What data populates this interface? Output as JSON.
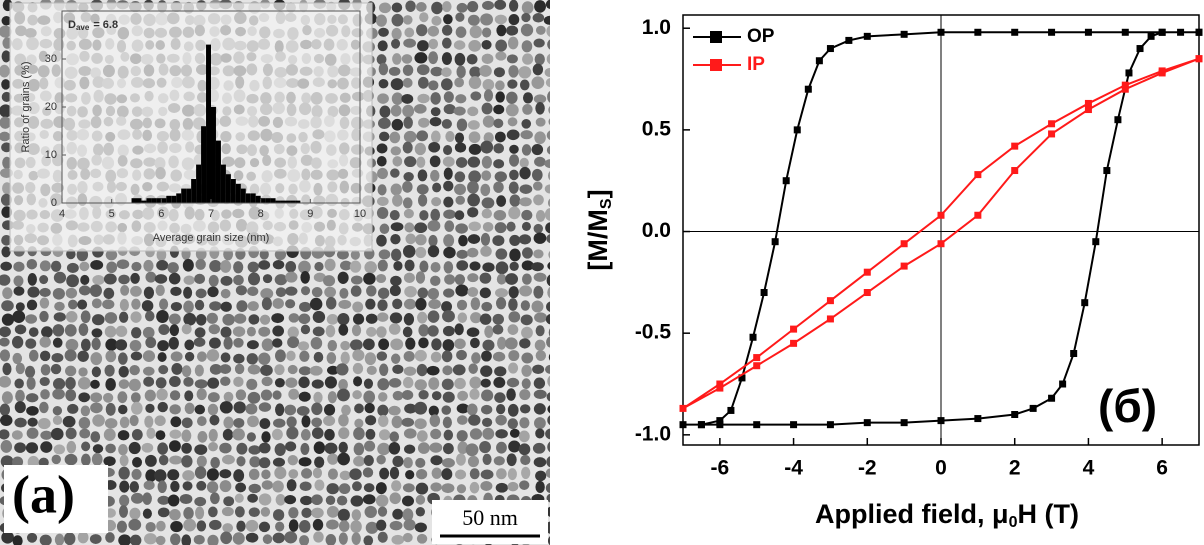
{
  "image_panel": {
    "label": "(a)",
    "scale_bar": "50 nm"
  },
  "chart_data": [
    {
      "type": "histogram",
      "x_label": "Average grain size (nm)",
      "y_label": "Ratio of grains (%)",
      "annotation": {
        "symbol": "D",
        "subscript": "ave",
        "text": "= 6.8"
      },
      "bins": [
        5.4,
        5.5,
        5.6,
        5.7,
        5.8,
        5.9,
        6.0,
        6.1,
        6.2,
        6.3,
        6.4,
        6.5,
        6.6,
        6.7,
        6.8,
        6.9,
        7.0,
        7.1,
        7.2,
        7.3,
        7.4,
        7.5,
        7.6,
        7.7,
        7.8,
        7.9,
        8.0,
        8.1,
        8.2,
        8.3,
        8.4,
        8.5,
        8.6,
        8.7,
        8.8
      ],
      "values": [
        1,
        1,
        0.5,
        1,
        1,
        1,
        1,
        1.5,
        1.5,
        2,
        3,
        3,
        5,
        8,
        16,
        33,
        20,
        13,
        8,
        6,
        5,
        4,
        3,
        2,
        2,
        1.5,
        1,
        1,
        1,
        0.5,
        0.5,
        0.5,
        0.5,
        0.5
      ],
      "color": "#000000",
      "xlim": [
        4,
        10
      ],
      "xticks": [
        4,
        5,
        6,
        7,
        8,
        9,
        10
      ],
      "ylim": [
        0,
        40
      ],
      "yticks": [
        0,
        10,
        20,
        30
      ]
    },
    {
      "type": "line",
      "x_label": {
        "text": "Applied field, μ",
        "subscript": "0",
        "suffix": "H (T)"
      },
      "y_label": {
        "text": "[M/M",
        "subscript": "S",
        "suffix": "]"
      },
      "annotation": "(б)",
      "series": [
        {
          "name": "OP",
          "color": "#000000",
          "x": [
            7,
            6,
            5,
            4,
            3,
            2,
            1,
            0,
            -1,
            -2,
            -2.5,
            -3,
            -3.3,
            -3.6,
            -3.9,
            -4.2,
            -4.5,
            -4.8,
            -5.1,
            -5.4,
            -5.7,
            -6,
            -6.5,
            -7,
            -6.5,
            -6,
            -5,
            -4,
            -3,
            -2,
            -1,
            0,
            1,
            2,
            2.5,
            3,
            3.3,
            3.6,
            3.9,
            4.2,
            4.5,
            4.8,
            5.1,
            5.4,
            5.7,
            6,
            6.5,
            7
          ],
          "values": [
            0.98,
            0.98,
            0.98,
            0.98,
            0.98,
            0.98,
            0.98,
            0.98,
            0.97,
            0.96,
            0.94,
            0.9,
            0.84,
            0.7,
            0.5,
            0.25,
            -0.05,
            -0.3,
            -0.52,
            -0.72,
            -0.88,
            -0.93,
            -0.95,
            -0.95,
            -0.95,
            -0.95,
            -0.95,
            -0.95,
            -0.95,
            -0.94,
            -0.94,
            -0.93,
            -0.92,
            -0.9,
            -0.87,
            -0.82,
            -0.75,
            -0.6,
            -0.35,
            -0.05,
            0.3,
            0.55,
            0.78,
            0.9,
            0.96,
            0.98,
            0.98,
            0.98
          ]
        },
        {
          "name": "IP",
          "color": "#ff1a1a",
          "x": [
            7,
            6,
            5,
            4,
            3,
            2,
            1,
            0,
            -1,
            -2,
            -3,
            -4,
            -5,
            -6,
            -7,
            -6,
            -5,
            -4,
            -3,
            -2,
            -1,
            0,
            1,
            2,
            3,
            4,
            5,
            6,
            7
          ],
          "values": [
            0.85,
            0.79,
            0.72,
            0.63,
            0.53,
            0.42,
            0.28,
            0.08,
            -0.06,
            -0.2,
            -0.34,
            -0.48,
            -0.62,
            -0.75,
            -0.87,
            -0.77,
            -0.66,
            -0.55,
            -0.43,
            -0.3,
            -0.17,
            -0.06,
            0.08,
            0.3,
            0.48,
            0.6,
            0.7,
            0.78,
            0.85
          ]
        }
      ],
      "xlim": [
        -7,
        7
      ],
      "xticks": [
        -6,
        -4,
        -2,
        0,
        2,
        4,
        6
      ],
      "ylim": [
        -1.05,
        1.065
      ],
      "yticks": [
        {
          "value": -1,
          "label": "-1.0"
        },
        -0.5,
        {
          "value": 0,
          "label": "0.0"
        },
        0.5,
        {
          "value": 1,
          "label": "1.0"
        }
      ],
      "zero_lines": true,
      "legend": "upper left"
    }
  ]
}
